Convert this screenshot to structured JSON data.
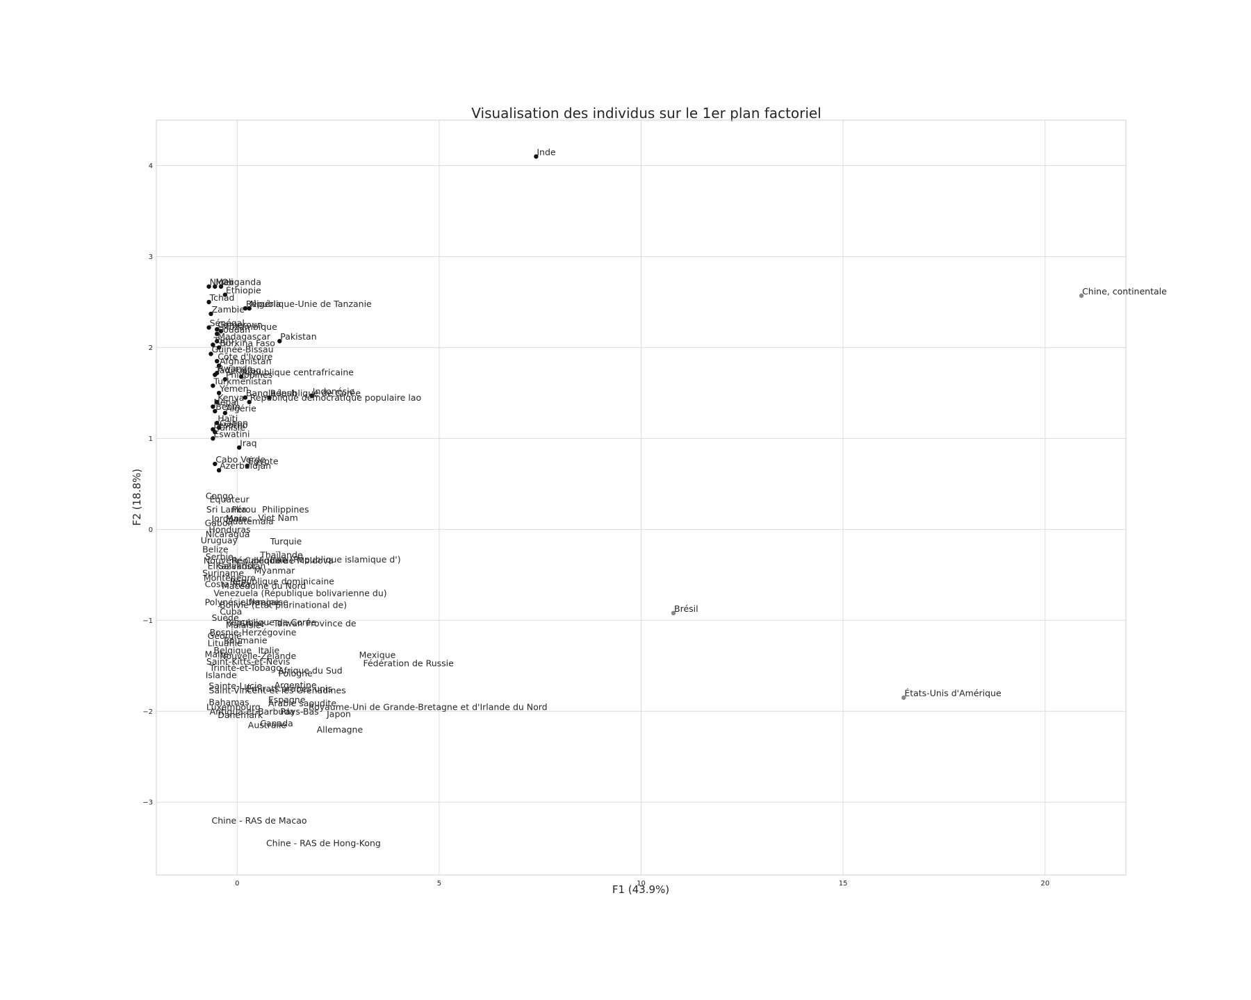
{
  "chart_data": {
    "type": "scatter",
    "title": "Visualisation des individus sur le 1er plan factoriel",
    "xlabel": "F1 (43.9%)",
    "ylabel": "F2 (18.8%)",
    "xlim": [
      -2,
      22
    ],
    "ylim": [
      -3.8,
      4.5
    ],
    "grid": true,
    "xticks": [
      0,
      5,
      10,
      15,
      20
    ],
    "yticks": [
      -3,
      -2,
      -1,
      0,
      1,
      2,
      3,
      4
    ],
    "xtick_labels": [
      "0",
      "5",
      "10",
      "15",
      "20"
    ],
    "ytick_labels": [
      "−3",
      "−2",
      "−1",
      "0",
      "1",
      "2",
      "3",
      "4"
    ],
    "colors": {
      "dark": "#111111",
      "grey": "#888888"
    },
    "points": [
      {
        "label": "Inde",
        "x": 7.4,
        "y": 4.1,
        "c": "dark"
      },
      {
        "label": "Chine, continentale",
        "x": 20.9,
        "y": 2.57,
        "c": "grey"
      },
      {
        "label": "Brésil",
        "x": 10.8,
        "y": -0.92,
        "c": "grey"
      },
      {
        "label": "États-Unis d'Amérique",
        "x": 16.5,
        "y": -1.85,
        "c": "grey"
      },
      {
        "label": "Niger",
        "x": -0.7,
        "y": 2.67,
        "c": "dark"
      },
      {
        "label": "Mali",
        "x": -0.55,
        "y": 2.67,
        "c": "dark"
      },
      {
        "label": "Ouganda",
        "x": -0.4,
        "y": 2.67,
        "c": "dark"
      },
      {
        "label": "Éthiopie",
        "x": -0.3,
        "y": 2.58,
        "c": "dark"
      },
      {
        "label": "Tchad",
        "x": -0.7,
        "y": 2.5,
        "c": "dark"
      },
      {
        "label": "République-Unie de Tanzanie",
        "x": 0.2,
        "y": 2.43,
        "c": "dark"
      },
      {
        "label": "Nigéria",
        "x": 0.3,
        "y": 2.43,
        "c": "dark"
      },
      {
        "label": "Zambie",
        "x": -0.65,
        "y": 2.37,
        "c": "dark"
      },
      {
        "label": "Sénégal",
        "x": -0.7,
        "y": 2.22,
        "c": "dark"
      },
      {
        "label": "Cameroun",
        "x": -0.5,
        "y": 2.2,
        "c": "dark"
      },
      {
        "label": "Mozambique",
        "x": -0.4,
        "y": 2.18,
        "c": "dark"
      },
      {
        "label": "Soudan",
        "x": -0.5,
        "y": 2.15,
        "c": "dark"
      },
      {
        "label": "Pakistan",
        "x": 1.05,
        "y": 2.07,
        "c": "dark"
      },
      {
        "label": "Madagascar",
        "x": -0.5,
        "y": 2.07,
        "c": "dark"
      },
      {
        "label": "Togo",
        "x": -0.6,
        "y": 2.03,
        "c": "dark"
      },
      {
        "label": "Burkina Faso",
        "x": -0.45,
        "y": 2.0,
        "c": "dark"
      },
      {
        "label": "Guinée-Bissau",
        "x": -0.65,
        "y": 1.93,
        "c": "dark"
      },
      {
        "label": "Côte d'Ivoire",
        "x": -0.5,
        "y": 1.85,
        "c": "dark"
      },
      {
        "label": "Afghanistan",
        "x": -0.45,
        "y": 1.8,
        "c": "dark"
      },
      {
        "label": "Rwanda",
        "x": -0.5,
        "y": 1.72,
        "c": "dark"
      },
      {
        "label": "République centrafricaine",
        "x": 0.1,
        "y": 1.68,
        "c": "dark"
      },
      {
        "label": "Tadjikistan",
        "x": -0.55,
        "y": 1.7,
        "c": "dark"
      },
      {
        "label": "Philippines",
        "x": -0.3,
        "y": 1.65,
        "c": "dark"
      },
      {
        "label": "Turkménistan",
        "x": -0.6,
        "y": 1.58,
        "c": "dark"
      },
      {
        "label": "Yémen",
        "x": -0.45,
        "y": 1.5,
        "c": "dark"
      },
      {
        "label": "Indonésie",
        "x": 1.85,
        "y": 1.47,
        "c": "dark"
      },
      {
        "label": "Bangladesh",
        "x": 0.2,
        "y": 1.45,
        "c": "dark"
      },
      {
        "label": "République de Corée",
        "x": 0.8,
        "y": 1.45,
        "c": "dark"
      },
      {
        "label": "République démocratique populaire lao",
        "x": 0.3,
        "y": 1.4,
        "c": "dark"
      },
      {
        "label": "Kenya",
        "x": -0.5,
        "y": 1.4,
        "c": "dark"
      },
      {
        "label": "Népal",
        "x": -0.6,
        "y": 1.35,
        "c": "dark"
      },
      {
        "label": "Bénin",
        "x": -0.55,
        "y": 1.3,
        "c": "dark"
      },
      {
        "label": "Algérie",
        "x": -0.3,
        "y": 1.28,
        "c": "dark"
      },
      {
        "label": "Haïti",
        "x": -0.5,
        "y": 1.17,
        "c": "dark"
      },
      {
        "label": "Gabon",
        "x": -0.45,
        "y": 1.12,
        "c": "dark"
      },
      {
        "label": "Lesotho",
        "x": -0.6,
        "y": 1.1,
        "c": "dark"
      },
      {
        "label": "Tunisie",
        "x": -0.55,
        "y": 1.07,
        "c": "dark"
      },
      {
        "label": "Eswatini",
        "x": -0.6,
        "y": 1.0,
        "c": "dark"
      },
      {
        "label": "Iraq",
        "x": 0.05,
        "y": 0.9,
        "c": "dark"
      },
      {
        "label": "Cabo Verde",
        "x": -0.55,
        "y": 0.72,
        "c": "dark"
      },
      {
        "label": "Égypte",
        "x": 0.25,
        "y": 0.7,
        "c": "dark"
      },
      {
        "label": "Azerbaïdjan",
        "x": -0.45,
        "y": 0.65,
        "c": "dark"
      },
      {
        "label": "Congo",
        "x": -0.8,
        "y": 0.32,
        "c": "none"
      },
      {
        "label": "Équateur",
        "x": -0.7,
        "y": 0.28,
        "c": "none"
      },
      {
        "label": "Sri Lanka",
        "x": -0.78,
        "y": 0.17,
        "c": "none"
      },
      {
        "label": "Pérou",
        "x": -0.15,
        "y": 0.17,
        "c": "none"
      },
      {
        "label": "Philippines",
        "x": 0.6,
        "y": 0.17,
        "c": "none"
      },
      {
        "label": "Jordanie",
        "x": -0.65,
        "y": 0.07,
        "c": "none"
      },
      {
        "label": "Maroc",
        "x": -0.3,
        "y": 0.07,
        "c": "none"
      },
      {
        "label": "Viet Nam",
        "x": 0.5,
        "y": 0.08,
        "c": "none"
      },
      {
        "label": "Guatemala",
        "x": -0.3,
        "y": 0.04,
        "c": "none"
      },
      {
        "label": "Gabon",
        "x": -0.82,
        "y": 0.02,
        "c": "none"
      },
      {
        "label": "Honduras",
        "x": -0.72,
        "y": -0.05,
        "c": "none"
      },
      {
        "label": "Nicaragua",
        "x": -0.8,
        "y": -0.1,
        "c": "none"
      },
      {
        "label": "Uruguay",
        "x": -0.92,
        "y": -0.17,
        "c": "none"
      },
      {
        "label": "Turquie",
        "x": 0.8,
        "y": -0.18,
        "c": "none"
      },
      {
        "label": "Belize",
        "x": -0.88,
        "y": -0.27,
        "c": "none"
      },
      {
        "label": "Serbie",
        "x": -0.8,
        "y": -0.35,
        "c": "none"
      },
      {
        "label": "Thaïlande",
        "x": 0.55,
        "y": -0.33,
        "c": "none"
      },
      {
        "label": "Iran (République islamique d')",
        "x": 0.8,
        "y": -0.38,
        "c": "none"
      },
      {
        "label": "Nouvelle-Calédonie",
        "x": -0.85,
        "y": -0.39,
        "c": "none"
      },
      {
        "label": "République de Moldova",
        "x": -0.15,
        "y": -0.39,
        "c": "none"
      },
      {
        "label": "El Salvador",
        "x": -0.75,
        "y": -0.45,
        "c": "none"
      },
      {
        "label": "Kazakhstan",
        "x": -0.55,
        "y": -0.45,
        "c": "none"
      },
      {
        "label": "Suriname",
        "x": -0.88,
        "y": -0.53,
        "c": "none"
      },
      {
        "label": "Myanmar",
        "x": 0.4,
        "y": -0.5,
        "c": "none"
      },
      {
        "label": "Monténégro",
        "x": -0.85,
        "y": -0.58,
        "c": "none"
      },
      {
        "label": "République dominicaine",
        "x": -0.2,
        "y": -0.62,
        "c": "none"
      },
      {
        "label": "Costa Rica",
        "x": -0.82,
        "y": -0.65,
        "c": "none"
      },
      {
        "label": "Macédoine du Nord",
        "x": -0.4,
        "y": -0.67,
        "c": "none"
      },
      {
        "label": "Venezuela (République bolivarienne du)",
        "x": -0.6,
        "y": -0.75,
        "c": "none"
      },
      {
        "label": "Polynésie française",
        "x": -0.82,
        "y": -0.85,
        "c": "none"
      },
      {
        "label": "Ukraine",
        "x": 0.2,
        "y": -0.85,
        "c": "none"
      },
      {
        "label": "Bolivie (État plurinational de)",
        "x": -0.45,
        "y": -0.88,
        "c": "none"
      },
      {
        "label": "Cuba",
        "x": -0.45,
        "y": -0.95,
        "c": "none"
      },
      {
        "label": "Suède",
        "x": -0.65,
        "y": -1.02,
        "c": "none"
      },
      {
        "label": "Chine - Taiwan Province de",
        "x": 0.05,
        "y": -1.08,
        "c": "none"
      },
      {
        "label": "République de Corée",
        "x": -0.3,
        "y": -1.07,
        "c": "none"
      },
      {
        "label": "Malaisie",
        "x": -0.3,
        "y": -1.1,
        "c": "none"
      },
      {
        "label": "Bosnie-Herzégovine",
        "x": -0.7,
        "y": -1.18,
        "c": "none"
      },
      {
        "label": "Géorgie",
        "x": -0.75,
        "y": -1.22,
        "c": "none"
      },
      {
        "label": "Roumanie",
        "x": -0.35,
        "y": -1.27,
        "c": "none"
      },
      {
        "label": "Lituanie",
        "x": -0.75,
        "y": -1.3,
        "c": "none"
      },
      {
        "label": "Belgique",
        "x": -0.6,
        "y": -1.38,
        "c": "none"
      },
      {
        "label": "Italie",
        "x": 0.5,
        "y": -1.38,
        "c": "none"
      },
      {
        "label": "Mexique",
        "x": 3.0,
        "y": -1.43,
        "c": "none"
      },
      {
        "label": "Malte",
        "x": -0.82,
        "y": -1.42,
        "c": "none"
      },
      {
        "label": "Nouvelle-Zélande",
        "x": -0.45,
        "y": -1.44,
        "c": "none"
      },
      {
        "label": "Saint-Kitts-et-Nevis",
        "x": -0.78,
        "y": -1.5,
        "c": "none"
      },
      {
        "label": "Fédération de Russie",
        "x": 3.1,
        "y": -1.52,
        "c": "none"
      },
      {
        "label": "Trinité-et-Tobago",
        "x": -0.7,
        "y": -1.57,
        "c": "none"
      },
      {
        "label": "Afrique du Sud",
        "x": 1.0,
        "y": -1.6,
        "c": "none"
      },
      {
        "label": "Pologne",
        "x": 1.0,
        "y": -1.63,
        "c": "none"
      },
      {
        "label": "Islande",
        "x": -0.8,
        "y": -1.65,
        "c": "none"
      },
      {
        "label": "Sainte-Lucie",
        "x": -0.72,
        "y": -1.77,
        "c": "none"
      },
      {
        "label": "Argentine",
        "x": 0.9,
        "y": -1.76,
        "c": "none"
      },
      {
        "label": "Émirats arabes unis",
        "x": 0.2,
        "y": -1.8,
        "c": "none"
      },
      {
        "label": "Saint-Vincent-et-les Grenadines",
        "x": -0.72,
        "y": -1.82,
        "c": "none"
      },
      {
        "label": "Espagne",
        "x": 0.75,
        "y": -1.92,
        "c": "none"
      },
      {
        "label": "Arabie saoudite",
        "x": 0.75,
        "y": -1.96,
        "c": "none"
      },
      {
        "label": "Bahamas",
        "x": -0.72,
        "y": -1.95,
        "c": "none"
      },
      {
        "label": "Luxembourg",
        "x": -0.78,
        "y": -2.0,
        "c": "none"
      },
      {
        "label": "Royaume-Uni de Grande-Bretagne et d'Irlande du Nord",
        "x": 1.75,
        "y": -2.0,
        "c": "none"
      },
      {
        "label": "Antigua-et-Barbuda",
        "x": -0.7,
        "y": -2.05,
        "c": "none"
      },
      {
        "label": "Pays-Bas",
        "x": 1.05,
        "y": -2.05,
        "c": "none"
      },
      {
        "label": "Japon",
        "x": 2.2,
        "y": -2.08,
        "c": "none"
      },
      {
        "label": "Danemark",
        "x": -0.5,
        "y": -2.09,
        "c": "none"
      },
      {
        "label": "Canada",
        "x": 0.55,
        "y": -2.18,
        "c": "none"
      },
      {
        "label": "Australie",
        "x": 0.25,
        "y": -2.2,
        "c": "none"
      },
      {
        "label": "Allemagne",
        "x": 1.95,
        "y": -2.25,
        "c": "none"
      },
      {
        "label": "Chine - RAS de Macao",
        "x": -0.65,
        "y": -3.25,
        "c": "none"
      },
      {
        "label": "Chine - RAS de Hong-Kong",
        "x": 0.7,
        "y": -3.5,
        "c": "none"
      }
    ]
  }
}
